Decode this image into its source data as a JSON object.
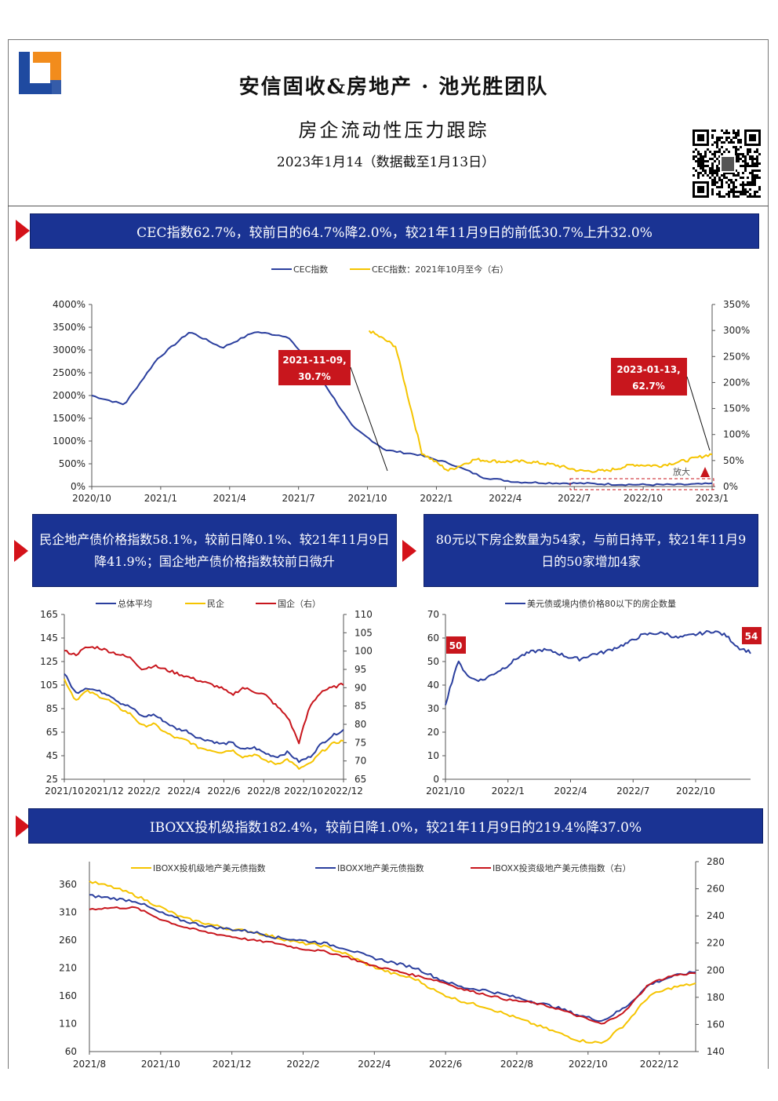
{
  "header": {
    "title": "安信固收&房地产 · 池光胜团队",
    "subtitle": "房企流动性压力跟踪",
    "date": "2023年1月14（数据截至1月13日）"
  },
  "banners": {
    "cec": "CEC指数62.7%，较前日的64.7%降2.0%，较21年11月9日的前低30.7%上升32.0%",
    "bond_index": "民企地产债价格指数58.1%，较前日降0.1%、较21年11月9日降41.9%；国企地产债价格指数较前日微升",
    "count80": "80元以下房企数量为54家，与前日持平，较21年11月9日的50家增加4家",
    "iboxx": "IBOXX投机级指数182.4%，较前日降1.0%，较21年11月9日的219.4%降37.0%"
  },
  "colors": {
    "navy": "#1a3393",
    "blue": "#2b3f9e",
    "gold": "#f5c400",
    "red": "#c8161d",
    "arrow": "#d4121a"
  },
  "chart_data": [
    {
      "type": "line",
      "series": [
        {
          "name": "CEC指数",
          "axis": "left",
          "x": [
            "2020-10",
            "2020-11",
            "2020-12",
            "2021-01",
            "2021-02",
            "2021-03",
            "2021-04",
            "2021-05",
            "2021-06",
            "2021-07",
            "2021-08",
            "2021-09",
            "2021-10",
            "2021-11",
            "2021-12",
            "2022-01",
            "2022-04",
            "2022-07",
            "2022-10",
            "2023-01"
          ],
          "values": [
            2000,
            1800,
            2800,
            3400,
            3050,
            3400,
            3300,
            2400,
            1300,
            800,
            700,
            500,
            200,
            100,
            80,
            70,
            50,
            40,
            40,
            60
          ]
        },
        {
          "name": "CEC指数：2021年10月至今（右）",
          "axis": "right",
          "x": [
            "2021-10",
            "2021-10-10",
            "2021-10-20",
            "2021-11-09",
            "2021-12",
            "2022-01",
            "2022-03",
            "2022-04",
            "2022-05",
            "2022-07",
            "2022-08",
            "2022-10",
            "2022-12",
            "2023-01-13"
          ],
          "values": [
            300,
            270,
            65,
            30.7,
            52,
            48,
            48,
            42,
            30,
            30,
            42,
            40,
            50,
            62.7
          ]
        }
      ],
      "left_ticks": [
        "0%",
        "500%",
        "1000%",
        "1500%",
        "2000%",
        "2500%",
        "3000%",
        "3500%",
        "4000%"
      ],
      "right_ticks": [
        "0%",
        "50%",
        "100%",
        "150%",
        "200%",
        "250%",
        "300%",
        "350%"
      ],
      "x_ticks": [
        "2020/10",
        "2021/1",
        "2021/4",
        "2021/7",
        "2021/10",
        "2022/1",
        "2022/4",
        "2022/7",
        "2022/10",
        "2023/1"
      ],
      "annotations": [
        {
          "label": "2021-11-09,\n30.7%"
        },
        {
          "label": "2023-01-13,\n62.7%"
        },
        {
          "label": "放大"
        }
      ]
    },
    {
      "type": "line",
      "series": [
        {
          "name": "总体平均",
          "axis": "left",
          "values": [
            115,
            98,
            103,
            100,
            97,
            90,
            86,
            78,
            80,
            74,
            68,
            66,
            60,
            58,
            55,
            56,
            50,
            52,
            47,
            44,
            48,
            40,
            44,
            55,
            62,
            67
          ]
        },
        {
          "name": "民企",
          "axis": "left",
          "values": [
            110,
            92,
            100,
            96,
            92,
            85,
            80,
            70,
            72,
            65,
            60,
            58,
            52,
            50,
            48,
            50,
            44,
            46,
            41,
            38,
            42,
            34,
            38,
            48,
            55,
            58
          ]
        },
        {
          "name": "国企（右）",
          "axis": "right",
          "values": [
            100,
            99,
            101,
            101,
            100,
            99,
            98,
            95,
            96,
            95,
            94,
            93,
            92,
            91,
            90,
            88,
            90,
            89,
            88,
            85,
            82,
            75,
            85,
            89,
            90,
            91
          ]
        }
      ],
      "left_ticks": [
        "25",
        "45",
        "65",
        "85",
        "105",
        "125",
        "145",
        "165"
      ],
      "right_ticks": [
        "65",
        "70",
        "75",
        "80",
        "85",
        "90",
        "95",
        "100",
        "105",
        "110"
      ],
      "x_ticks": [
        "2021/10",
        "2021/12",
        "2022/2",
        "2022/4",
        "2022/6",
        "2022/8",
        "2022/10",
        "2022/12"
      ]
    },
    {
      "type": "line",
      "series": [
        {
          "name": "美元债或境内债价格80以下的房企数量",
          "values": [
            32,
            50,
            43,
            42,
            45,
            48,
            52,
            54,
            55,
            54,
            52,
            51,
            53,
            54,
            56,
            58,
            61,
            62,
            62,
            60,
            61,
            62,
            63,
            61,
            56,
            54
          ]
        }
      ],
      "y_ticks": [
        "0",
        "10",
        "20",
        "30",
        "40",
        "50",
        "60",
        "70"
      ],
      "x_ticks": [
        "2021/10",
        "2022/1",
        "2022/4",
        "2022/7",
        "2022/10"
      ],
      "callouts": [
        "50",
        "54"
      ]
    },
    {
      "type": "line",
      "series": [
        {
          "name": "IBOXX投机级地产美元债指数",
          "axis": "left",
          "values": [
            365,
            355,
            340,
            320,
            300,
            290,
            280,
            275,
            265,
            255,
            250,
            235,
            215,
            200,
            190,
            165,
            150,
            140,
            125,
            110,
            95,
            80,
            75,
            110,
            160,
            175,
            182
          ]
        },
        {
          "name": "IBOXX地产美元债指数",
          "axis": "left",
          "values": [
            340,
            335,
            330,
            310,
            295,
            285,
            280,
            275,
            265,
            260,
            255,
            245,
            230,
            220,
            210,
            190,
            175,
            170,
            160,
            150,
            140,
            125,
            115,
            140,
            180,
            195,
            203
          ]
        },
        {
          "name": "IBOXX投资级地产美元债指数（右）",
          "axis": "right",
          "values": [
            245,
            246,
            246,
            238,
            232,
            228,
            225,
            222,
            220,
            216,
            214,
            210,
            204,
            200,
            196,
            192,
            186,
            182,
            178,
            176,
            172,
            166,
            160,
            170,
            190,
            196,
            198
          ]
        }
      ],
      "left_ticks": [
        "60",
        "110",
        "160",
        "210",
        "260",
        "310",
        "360"
      ],
      "right_ticks": [
        "140",
        "160",
        "180",
        "200",
        "220",
        "240",
        "260",
        "280"
      ],
      "x_ticks": [
        "2021/8",
        "2021/10",
        "2021/12",
        "2022/2",
        "2022/4",
        "2022/6",
        "2022/8",
        "2022/10",
        "2022/12"
      ]
    }
  ]
}
